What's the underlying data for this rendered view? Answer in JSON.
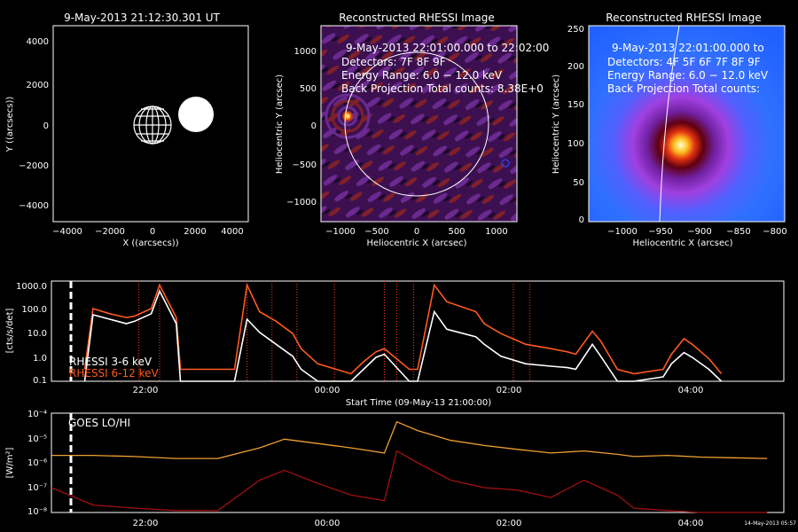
{
  "panels": {
    "orbit": {
      "title": "9-May-2013 21:12:30.301 UT",
      "xlabel": "X ((arcsecs))",
      "ylabel": "Y ((arcsecs))",
      "xticks": [
        "−4000",
        "−2000",
        "0",
        "2000",
        "4000"
      ],
      "yticks": [
        "4000",
        "2000",
        "0",
        "−2000",
        "−4000"
      ]
    },
    "rhessi_full": {
      "title": "Reconstructed RHESSI Image",
      "info_lines": [
        "9-May-2013 22:01:00.000 to 22:02:00",
        "Detectors: 7F 8F 9F",
        "Energy Range: 6.0 − 12.0 keV",
        "Back Projection     Total counts: 8.38E+0"
      ],
      "xlabel": "Heliocentric X (arcsec)",
      "ylabel": "Heliocentric Y (arcsec)",
      "xticks": [
        "−1000",
        "−500",
        "0",
        "500",
        "1000"
      ],
      "yticks": [
        "1000",
        "500",
        "0",
        "−500",
        "−1000"
      ]
    },
    "rhessi_zoom": {
      "title": "Reconstructed RHESSI Image",
      "info_lines": [
        "9-May-2013 22:01:00.000 to",
        "Detectors: 4F 5F 6F 7F 8F 9F",
        "Energy Range: 6.0 − 12.0 keV",
        "Back Projection     Total counts:"
      ],
      "xlabel": "Heliocentric X (arcsec)",
      "ylabel": "Heliocentric Y (arcsec)",
      "xticks": [
        "−1000",
        "−950",
        "−900",
        "−850",
        "−800"
      ],
      "yticks": [
        "250",
        "200",
        "150",
        "100",
        "50",
        "0"
      ]
    },
    "lightcurve": {
      "ylabel": "[cts/s/det]",
      "xlabel": "Start Time (09-May-13 21:00:00)",
      "yticks": [
        "1000.0",
        "100.0",
        "10.0",
        "1.0",
        "0.1"
      ],
      "xticks": [
        "22:00",
        "00:00",
        "02:00",
        "04:00"
      ],
      "legend": [
        "RHESSI  3-6 keV",
        "RHESSI  6-12 keV"
      ]
    },
    "goes": {
      "ylabel": "[W/m²]",
      "label": "GOES LO/HI",
      "yticks": [
        "10⁻⁴",
        "10⁻⁵",
        "10⁻⁶",
        "10⁻⁷",
        "10⁻⁸"
      ],
      "xticks": [
        "22:00",
        "00:00",
        "02:00",
        "04:00"
      ],
      "date_stamp": "14-May-2013 05:57"
    }
  },
  "colors": {
    "white_curve": "#ffffff",
    "red_curve": "#ff5a1e",
    "goes_lo": "#f0a030",
    "goes_hi": "#a01010",
    "marker": "#ff4020"
  },
  "chart_data": [
    {
      "type": "line",
      "title": "",
      "xlabel": "Start Time (09-May-13 21:00:00)",
      "ylabel": "[cts/s/det]",
      "yscale": "log",
      "ylim": [
        0.1,
        1000
      ],
      "xlim_hours": [
        21.0,
        29.8
      ],
      "series": [
        {
          "name": "RHESSI  3-6 keV",
          "x": [
            21.4,
            21.5,
            21.7,
            21.9,
            22.0,
            22.2,
            22.3,
            22.5,
            22.55,
            23.2,
            23.35,
            23.5,
            23.7,
            23.9,
            24.0,
            24.2,
            24.6,
            24.75,
            24.9,
            25.0,
            25.3,
            25.4,
            25.6,
            25.75,
            26.1,
            26.2,
            26.4,
            26.7,
            27.0,
            27.2,
            27.3,
            27.5,
            27.6,
            27.8,
            28.0,
            28.35,
            28.45,
            28.6,
            28.7,
            28.9,
            29.05
          ],
          "y": [
            0.1,
            45,
            30,
            20,
            25,
            50,
            400,
            20,
            0.1,
            0.1,
            30,
            9,
            3,
            1,
            0.3,
            0.1,
            0.1,
            0.3,
            0.9,
            1.2,
            0.1,
            0.1,
            60,
            12,
            6,
            3,
            1,
            0.5,
            0.4,
            0.35,
            0.3,
            3,
            1,
            0.1,
            0.1,
            0.15,
            0.5,
            1.4,
            0.9,
            0.3,
            0.1
          ]
        },
        {
          "name": "RHESSI  6-12 keV",
          "x": [
            21.4,
            21.5,
            21.7,
            21.9,
            22.0,
            22.2,
            22.3,
            22.5,
            22.55,
            23.2,
            23.35,
            23.5,
            23.7,
            23.9,
            24.0,
            24.2,
            24.6,
            24.75,
            24.9,
            25.0,
            25.3,
            25.4,
            25.6,
            25.75,
            26.1,
            26.2,
            26.4,
            26.7,
            27.0,
            27.2,
            27.3,
            27.5,
            27.6,
            27.8,
            28.0,
            28.35,
            28.45,
            28.6,
            28.7,
            28.9,
            29.05
          ],
          "y": [
            0.3,
            80,
            50,
            35,
            40,
            80,
            700,
            35,
            0.3,
            0.3,
            700,
            60,
            25,
            8,
            2,
            0.5,
            0.2,
            0.6,
            1.5,
            2,
            0.3,
            0.3,
            700,
            150,
            60,
            20,
            8,
            3,
            2,
            1.5,
            1.2,
            10,
            4,
            0.3,
            0.2,
            0.3,
            1.2,
            5,
            3,
            0.8,
            0.2
          ]
        }
      ]
    },
    {
      "type": "line",
      "title": "",
      "ylabel": "[W/m²]",
      "yscale": "log",
      "ylim": [
        1e-08,
        0.0001
      ],
      "xlim_hours": [
        21.0,
        29.8
      ],
      "series": [
        {
          "name": "GOES LO/HI",
          "x": [
            21.0,
            21.5,
            22.0,
            22.5,
            23.0,
            23.5,
            23.8,
            24.2,
            24.6,
            25.0,
            25.15,
            25.4,
            25.8,
            26.2,
            26.6,
            27.0,
            27.4,
            27.8,
            28.0,
            28.4,
            28.8,
            29.2,
            29.6
          ],
          "y": [
            2e-06,
            2e-06,
            1.8e-06,
            1.5e-06,
            1.5e-06,
            4e-06,
            9e-06,
            6e-06,
            4e-06,
            2.5e-06,
            4.5e-05,
            2e-05,
            8e-06,
            5e-06,
            3.5e-06,
            2.5e-06,
            3e-06,
            2.2e-06,
            1.8e-06,
            2e-06,
            1.7e-06,
            1.6e-06,
            1.5e-06
          ]
        },
        {
          "name": "",
          "x": [
            21.0,
            21.5,
            22.0,
            22.5,
            23.0,
            23.5,
            23.8,
            24.2,
            24.6,
            25.0,
            25.15,
            25.4,
            25.8,
            26.2,
            26.6,
            27.0,
            27.4,
            27.8,
            28.0,
            28.4,
            28.8,
            29.2,
            29.6
          ],
          "y": [
            1e-07,
            2e-08,
            1.5e-08,
            1.2e-08,
            1.2e-08,
            2e-07,
            5e-07,
            1.5e-07,
            5e-08,
            3e-08,
            3e-06,
            1e-06,
            2e-07,
            1e-07,
            8e-08,
            4e-08,
            2e-07,
            5e-08,
            1.5e-08,
            1.2e-08,
            1e-08,
            1e-08,
            1e-08
          ]
        }
      ]
    }
  ]
}
